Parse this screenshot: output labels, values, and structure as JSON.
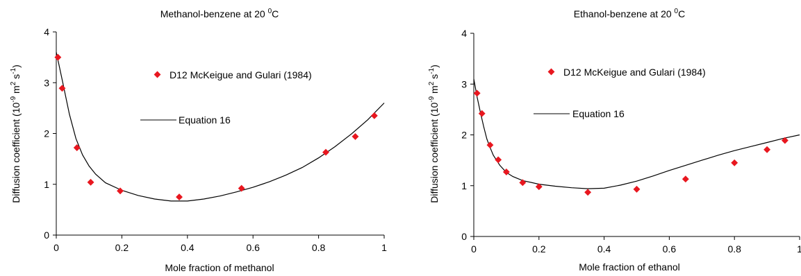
{
  "colors": {
    "marker": "#e8171f",
    "line": "#000000",
    "axis": "#000000"
  },
  "chart_data": [
    {
      "type": "scatter",
      "title": {
        "text": "Methanol-benzene at 20 ",
        "sup": "0",
        "suffix": "C"
      },
      "xlabel": "Mole fraction of methanol",
      "ylabel": {
        "main": "Diffusion coefficient (10",
        "exp1": "-9",
        "mid": " m",
        "exp2": "2",
        "mid2": " s",
        "exp3": "-1",
        "end": ")"
      },
      "xlim": [
        0,
        1
      ],
      "ylim": [
        0,
        4
      ],
      "xticks": [
        0,
        0.2,
        0.4,
        0.6,
        0.8,
        1
      ],
      "xtick_labels": [
        "0",
        "0.2",
        "0.4",
        "0.6",
        "0.8",
        "1"
      ],
      "yticks": [
        0,
        1,
        2,
        3,
        4
      ],
      "ytick_labels": [
        "0",
        "1",
        "2",
        "3",
        "4"
      ],
      "grid": false,
      "series": [
        {
          "name": "D12 McKeigue and Gulari (1984)",
          "marker": "diamond",
          "x": [
            0.005,
            0.018,
            0.063,
            0.105,
            0.195,
            0.375,
            0.565,
            0.822,
            0.912,
            0.97
          ],
          "y": [
            3.5,
            2.89,
            1.72,
            1.04,
            0.87,
            0.75,
            0.92,
            1.63,
            1.94,
            2.35
          ]
        },
        {
          "name": "Equation 16",
          "marker": "line",
          "x": [
            0,
            0.01,
            0.02,
            0.04,
            0.06,
            0.08,
            0.1,
            0.12,
            0.15,
            0.2,
            0.25,
            0.3,
            0.35,
            0.4,
            0.45,
            0.5,
            0.55,
            0.6,
            0.65,
            0.7,
            0.75,
            0.8,
            0.85,
            0.9,
            0.95,
            1.0
          ],
          "y": [
            3.6,
            3.3,
            3.0,
            2.38,
            1.9,
            1.58,
            1.36,
            1.2,
            1.03,
            0.88,
            0.78,
            0.71,
            0.67,
            0.67,
            0.71,
            0.77,
            0.85,
            0.94,
            1.05,
            1.18,
            1.33,
            1.52,
            1.74,
            1.99,
            2.27,
            2.6
          ]
        }
      ]
    },
    {
      "type": "scatter",
      "title": {
        "text": "Ethanol-benzene at 20 ",
        "sup": "0",
        "suffix": "C"
      },
      "xlabel": "Mole fraction of ethanol",
      "ylabel": {
        "main": "Diffusion coefficient (10",
        "exp1": "-9",
        "mid": " m",
        "exp2": "2",
        "mid2": " s",
        "exp3": "-1",
        "end": ")"
      },
      "xlim": [
        0,
        1
      ],
      "ylim": [
        0,
        4
      ],
      "xticks": [
        0,
        0.2,
        0.4,
        0.6,
        0.8,
        1
      ],
      "xtick_labels": [
        "0",
        "0.2",
        "0.4",
        "0.6",
        "0.8",
        "1"
      ],
      "yticks": [
        0,
        1,
        2,
        3,
        4
      ],
      "ytick_labels": [
        "0",
        "1",
        "2",
        "3",
        "4"
      ],
      "grid": false,
      "series": [
        {
          "name": "D12 McKeigue and Gulari (1984)",
          "marker": "diamond",
          "x": [
            0.01,
            0.025,
            0.05,
            0.075,
            0.1,
            0.15,
            0.2,
            0.35,
            0.5,
            0.65,
            0.8,
            0.9,
            0.955
          ],
          "y": [
            2.82,
            2.42,
            1.8,
            1.51,
            1.27,
            1.06,
            0.98,
            0.87,
            0.93,
            1.13,
            1.45,
            1.71,
            1.89
          ]
        },
        {
          "name": "Equation 16",
          "marker": "line",
          "x": [
            0,
            0.01,
            0.02,
            0.03,
            0.04,
            0.05,
            0.06,
            0.08,
            0.1,
            0.12,
            0.15,
            0.2,
            0.25,
            0.3,
            0.35,
            0.4,
            0.45,
            0.5,
            0.55,
            0.6,
            0.65,
            0.7,
            0.75,
            0.8,
            0.85,
            0.9,
            0.95,
            1.0
          ],
          "y": [
            3.1,
            2.75,
            2.45,
            2.17,
            1.92,
            1.75,
            1.6,
            1.4,
            1.26,
            1.18,
            1.1,
            1.03,
            0.99,
            0.96,
            0.94,
            0.95,
            1.01,
            1.09,
            1.19,
            1.3,
            1.4,
            1.5,
            1.6,
            1.69,
            1.77,
            1.85,
            1.93,
            2.0
          ]
        }
      ]
    }
  ]
}
